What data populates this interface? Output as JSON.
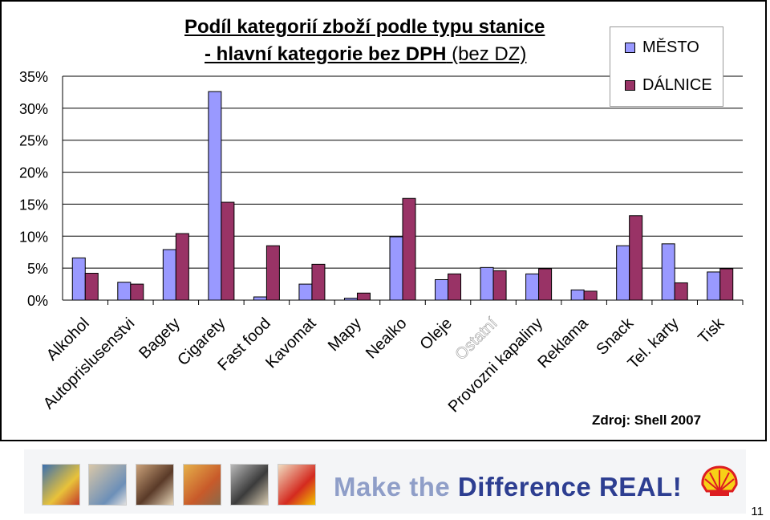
{
  "chart_data": {
    "type": "bar",
    "title_line1": "Podíl kategorií zboží podle typu stanice",
    "title_line2_bold": "- hlavní kategorie bez DPH",
    "title_line2_normal": " (bez DZ)",
    "categories": [
      "Alkohol",
      "Autoprislusenstvi",
      "Bagety",
      "Cigarety",
      "Fast food",
      "Kavomat",
      "Mapy",
      "Nealko",
      "Oleje",
      "Ostatní",
      "Provozni kapaliny",
      "Reklama",
      "Snack",
      "Tel. karty",
      "Tisk"
    ],
    "series": [
      {
        "name": "MĚSTO",
        "color": "#9999ff",
        "values": [
          6.6,
          2.8,
          7.9,
          32.6,
          0.5,
          2.5,
          0.3,
          9.9,
          3.2,
          5.1,
          4.1,
          1.6,
          8.5,
          8.8,
          4.4
        ]
      },
      {
        "name": "DÁLNICE",
        "color": "#993366",
        "values": [
          4.2,
          2.5,
          10.4,
          15.3,
          8.5,
          5.6,
          1.1,
          15.9,
          4.1,
          4.6,
          4.9,
          1.4,
          13.2,
          2.7,
          4.9
        ]
      }
    ],
    "ylim": [
      0,
      35
    ],
    "yticks": [
      "0%",
      "5%",
      "10%",
      "15%",
      "20%",
      "25%",
      "30%",
      "35%"
    ],
    "grid": true,
    "legend_position": "top-right"
  },
  "source": "Zdroj: Shell 2007",
  "banner": {
    "slogan_light1": "Make the ",
    "slogan_strong1": "Difference",
    "slogan_strong2": " REAL!",
    "logo_icon": "shell-pecten-icon"
  },
  "page_number": "11"
}
